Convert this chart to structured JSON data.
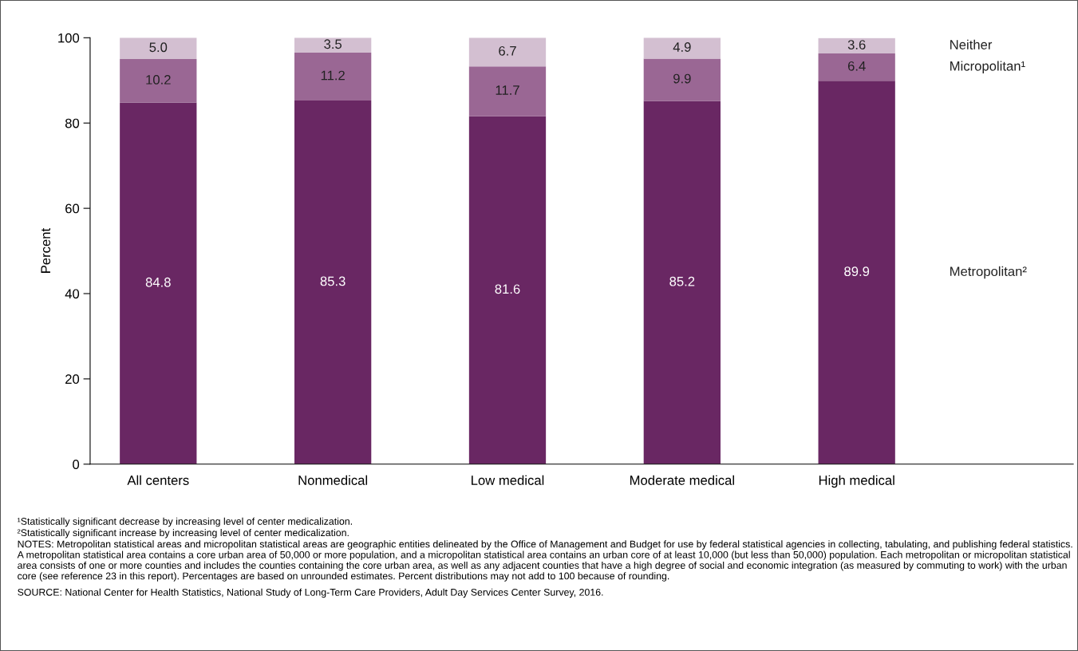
{
  "chart_data": {
    "type": "bar",
    "stacked": true,
    "ylabel": "Percent",
    "categories": [
      "All centers",
      "Nonmedical",
      "Low medical",
      "Moderate medical",
      "High medical"
    ],
    "series": [
      {
        "name": "Metropolitan²",
        "color": "#692763",
        "values": [
          84.8,
          85.3,
          81.6,
          85.2,
          89.9
        ],
        "value_labels": [
          "84.8",
          "85.3",
          "81.6",
          "85.2",
          "89.9"
        ]
      },
      {
        "name": "Micropolitan¹",
        "color": "#9a6794",
        "values": [
          10.2,
          11.2,
          11.7,
          9.9,
          6.4
        ],
        "value_labels": [
          "10.2",
          "11.2",
          "11.7",
          "9.9",
          "6.4"
        ]
      },
      {
        "name": "Neither",
        "color": "#d3bfd1",
        "values": [
          5.0,
          3.5,
          6.7,
          4.9,
          3.6
        ],
        "value_labels": [
          "5.0",
          "3.5",
          "6.7",
          "4.9",
          "3.6"
        ]
      }
    ],
    "ylim": [
      0,
      100
    ],
    "yticks": [
      0,
      20,
      40,
      60,
      80,
      100
    ],
    "legend": false,
    "grid": false,
    "annotations": [
      "¹Statistically significant decrease by increasing level of center medicalization.",
      "²Statistically significant increase by increasing level of center medicalization.",
      "NOTES: Metropolitan statistical areas and micropolitan statistical areas are geographic entities delineated by the Office of Management and Budget for use by federal statistical agencies in collecting, tabulating, and publishing federal statistics. A metropolitan statistical area contains a core urban area of 50,000 or more population, and a micropolitan statistical area contains an urban core of at least 10,000 (but less than 50,000) population. Each metropolitan or micropolitan statistical area consists of one or more counties and includes the counties containing the core urban area, as well as any adjacent counties that have a high degree of social and economic integration (as measured by commuting to work) with the urban core (see reference 23 in this report). Percentages are based on unrounded estimates. Percent distributions may not add to 100 because of rounding.",
      "SOURCE: National Center for Health Statistics, National Study of Long-Term Care Providers, Adult Day Services Center Survey, 2016."
    ]
  }
}
